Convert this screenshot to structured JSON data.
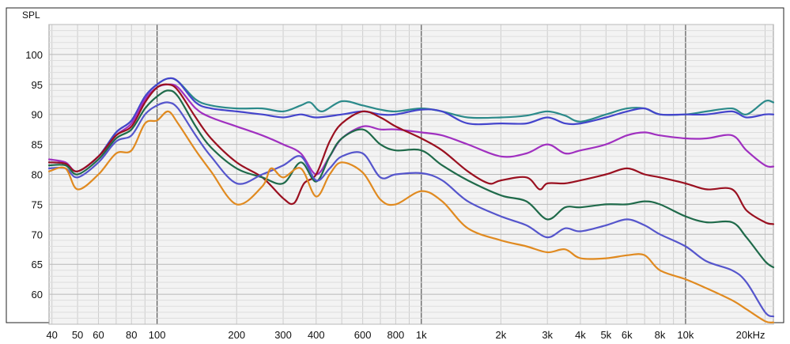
{
  "chart_data": {
    "type": "line",
    "ylabel": "SPL",
    "x_scale": "log",
    "xlim": [
      39,
      21500
    ],
    "ylim": [
      55,
      105
    ],
    "grid": true,
    "legend": "none",
    "x_ticks": [
      {
        "value": 40,
        "label": "40"
      },
      {
        "value": 50,
        "label": "50"
      },
      {
        "value": 60,
        "label": "60"
      },
      {
        "value": 80,
        "label": "80"
      },
      {
        "value": 100,
        "label": "100"
      },
      {
        "value": 200,
        "label": "200"
      },
      {
        "value": 300,
        "label": "300"
      },
      {
        "value": 400,
        "label": "400"
      },
      {
        "value": 600,
        "label": "600"
      },
      {
        "value": 800,
        "label": "800"
      },
      {
        "value": 1000,
        "label": "1k"
      },
      {
        "value": 2000,
        "label": "2k"
      },
      {
        "value": 3000,
        "label": "3k"
      },
      {
        "value": 4000,
        "label": "4k"
      },
      {
        "value": 5000,
        "label": "5k"
      },
      {
        "value": 6000,
        "label": "6k"
      },
      {
        "value": 8000,
        "label": "8k"
      },
      {
        "value": 10000,
        "label": "10k"
      },
      {
        "value": 20000,
        "label": "20kHz"
      }
    ],
    "y_ticks": [
      60,
      65,
      70,
      75,
      80,
      85,
      90,
      95,
      100
    ],
    "series": [
      {
        "color": "#2b8a8a",
        "points": [
          [
            39,
            82
          ],
          [
            45,
            81.8
          ],
          [
            50,
            80.5
          ],
          [
            60,
            83
          ],
          [
            70,
            87
          ],
          [
            80,
            89
          ],
          [
            90,
            93
          ],
          [
            100,
            95
          ],
          [
            110,
            96
          ],
          [
            120,
            95.5
          ],
          [
            140,
            92.5
          ],
          [
            160,
            91.5
          ],
          [
            200,
            91
          ],
          [
            250,
            91
          ],
          [
            300,
            90.5
          ],
          [
            350,
            91.5
          ],
          [
            380,
            92
          ],
          [
            420,
            90.5
          ],
          [
            500,
            92.2
          ],
          [
            600,
            91.5
          ],
          [
            700,
            90.8
          ],
          [
            800,
            90.5
          ],
          [
            1000,
            91
          ],
          [
            1200,
            90.5
          ],
          [
            1500,
            89.5
          ],
          [
            2000,
            89.5
          ],
          [
            2500,
            89.8
          ],
          [
            3000,
            90.5
          ],
          [
            3500,
            89.8
          ],
          [
            4000,
            88.8
          ],
          [
            5000,
            90
          ],
          [
            6000,
            91
          ],
          [
            7000,
            91
          ],
          [
            8000,
            90
          ],
          [
            10000,
            90
          ],
          [
            12000,
            90.5
          ],
          [
            15000,
            91
          ],
          [
            17000,
            90
          ],
          [
            20000,
            92.2
          ],
          [
            21500,
            92
          ]
        ]
      },
      {
        "color": "#4444cc",
        "points": [
          [
            39,
            82
          ],
          [
            45,
            81.8
          ],
          [
            50,
            80.5
          ],
          [
            60,
            83
          ],
          [
            70,
            87
          ],
          [
            80,
            89
          ],
          [
            90,
            93
          ],
          [
            100,
            95
          ],
          [
            110,
            96
          ],
          [
            120,
            95.5
          ],
          [
            140,
            92
          ],
          [
            160,
            91
          ],
          [
            200,
            90.5
          ],
          [
            250,
            90
          ],
          [
            300,
            89.5
          ],
          [
            350,
            90
          ],
          [
            400,
            89.5
          ],
          [
            500,
            90
          ],
          [
            600,
            90.5
          ],
          [
            700,
            90
          ],
          [
            800,
            90
          ],
          [
            1000,
            90.8
          ],
          [
            1200,
            90.5
          ],
          [
            1500,
            88.5
          ],
          [
            2000,
            88.5
          ],
          [
            2500,
            88.5
          ],
          [
            3000,
            89.5
          ],
          [
            3500,
            88.5
          ],
          [
            4000,
            88.5
          ],
          [
            5000,
            89.5
          ],
          [
            6000,
            90.5
          ],
          [
            7000,
            91
          ],
          [
            8000,
            90
          ],
          [
            10000,
            90
          ],
          [
            12000,
            90
          ],
          [
            15000,
            90.5
          ],
          [
            17000,
            89.5
          ],
          [
            20000,
            90
          ],
          [
            21500,
            90
          ]
        ]
      },
      {
        "color": "#a030c0",
        "points": [
          [
            39,
            82.5
          ],
          [
            45,
            82
          ],
          [
            50,
            80.5
          ],
          [
            60,
            83
          ],
          [
            70,
            86.5
          ],
          [
            80,
            88.5
          ],
          [
            90,
            92.5
          ],
          [
            100,
            94.5
          ],
          [
            110,
            95
          ],
          [
            120,
            94.5
          ],
          [
            140,
            91
          ],
          [
            160,
            89.5
          ],
          [
            200,
            88
          ],
          [
            250,
            86.5
          ],
          [
            300,
            85
          ],
          [
            350,
            83.5
          ],
          [
            400,
            80
          ],
          [
            450,
            83
          ],
          [
            500,
            86
          ],
          [
            600,
            88
          ],
          [
            700,
            87.5
          ],
          [
            800,
            87.5
          ],
          [
            1000,
            87
          ],
          [
            1200,
            86.5
          ],
          [
            1500,
            85
          ],
          [
            2000,
            83
          ],
          [
            2500,
            83.5
          ],
          [
            3000,
            85
          ],
          [
            3500,
            83.5
          ],
          [
            4000,
            84
          ],
          [
            5000,
            85
          ],
          [
            6000,
            86.5
          ],
          [
            7000,
            87
          ],
          [
            8000,
            86.5
          ],
          [
            10000,
            86
          ],
          [
            12000,
            86
          ],
          [
            15000,
            86.5
          ],
          [
            17000,
            84
          ],
          [
            20000,
            81.5
          ],
          [
            21500,
            81.3
          ]
        ]
      },
      {
        "color": "#9a1020",
        "points": [
          [
            39,
            82
          ],
          [
            45,
            81.8
          ],
          [
            50,
            80.5
          ],
          [
            60,
            83
          ],
          [
            70,
            86.5
          ],
          [
            80,
            88
          ],
          [
            90,
            92
          ],
          [
            100,
            94.5
          ],
          [
            110,
            95
          ],
          [
            120,
            94
          ],
          [
            140,
            89.5
          ],
          [
            160,
            86
          ],
          [
            200,
            82
          ],
          [
            250,
            79.5
          ],
          [
            300,
            76
          ],
          [
            330,
            75.2
          ],
          [
            360,
            78.5
          ],
          [
            400,
            80
          ],
          [
            450,
            85.5
          ],
          [
            500,
            88.5
          ],
          [
            600,
            90.5
          ],
          [
            700,
            89.5
          ],
          [
            800,
            88
          ],
          [
            1000,
            86
          ],
          [
            1200,
            84
          ],
          [
            1500,
            80.5
          ],
          [
            1800,
            78.5
          ],
          [
            2000,
            79
          ],
          [
            2500,
            79.5
          ],
          [
            2800,
            77.5
          ],
          [
            3000,
            78.5
          ],
          [
            3500,
            78.5
          ],
          [
            4000,
            79
          ],
          [
            5000,
            80
          ],
          [
            6000,
            81
          ],
          [
            7000,
            80
          ],
          [
            8000,
            79.5
          ],
          [
            10000,
            78.5
          ],
          [
            12000,
            77.5
          ],
          [
            15000,
            77.5
          ],
          [
            17000,
            74
          ],
          [
            20000,
            72
          ],
          [
            21500,
            71.7
          ]
        ]
      },
      {
        "color": "#1f6a4a",
        "points": [
          [
            39,
            81.5
          ],
          [
            45,
            81.5
          ],
          [
            50,
            80
          ],
          [
            60,
            82.5
          ],
          [
            70,
            86
          ],
          [
            80,
            87.5
          ],
          [
            90,
            91
          ],
          [
            100,
            93
          ],
          [
            110,
            94
          ],
          [
            120,
            93
          ],
          [
            140,
            88
          ],
          [
            160,
            84.5
          ],
          [
            200,
            81
          ],
          [
            250,
            79.5
          ],
          [
            300,
            78.5
          ],
          [
            350,
            82
          ],
          [
            400,
            78.8
          ],
          [
            450,
            83
          ],
          [
            500,
            86
          ],
          [
            600,
            87.5
          ],
          [
            700,
            85
          ],
          [
            800,
            84
          ],
          [
            1000,
            84
          ],
          [
            1200,
            81.5
          ],
          [
            1500,
            79
          ],
          [
            2000,
            76.5
          ],
          [
            2500,
            75.5
          ],
          [
            3000,
            72.5
          ],
          [
            3500,
            74.5
          ],
          [
            4000,
            74.5
          ],
          [
            5000,
            75
          ],
          [
            6000,
            75
          ],
          [
            7000,
            75.5
          ],
          [
            8000,
            75
          ],
          [
            10000,
            73
          ],
          [
            12000,
            72
          ],
          [
            15000,
            72
          ],
          [
            17000,
            69.5
          ],
          [
            20000,
            65.5
          ],
          [
            21500,
            64.5
          ]
        ]
      },
      {
        "color": "#5555cc",
        "points": [
          [
            39,
            81
          ],
          [
            45,
            81
          ],
          [
            50,
            79.5
          ],
          [
            60,
            82
          ],
          [
            70,
            85.5
          ],
          [
            80,
            86.5
          ],
          [
            90,
            90
          ],
          [
            100,
            91.5
          ],
          [
            110,
            92
          ],
          [
            120,
            91
          ],
          [
            140,
            86.5
          ],
          [
            160,
            83
          ],
          [
            200,
            78.5
          ],
          [
            250,
            80
          ],
          [
            300,
            81.5
          ],
          [
            350,
            83
          ],
          [
            400,
            79
          ],
          [
            450,
            81
          ],
          [
            500,
            83
          ],
          [
            600,
            83.5
          ],
          [
            700,
            79.5
          ],
          [
            800,
            80
          ],
          [
            1000,
            80.2
          ],
          [
            1200,
            79
          ],
          [
            1500,
            75.5
          ],
          [
            2000,
            73
          ],
          [
            2500,
            71.5
          ],
          [
            3000,
            69.5
          ],
          [
            3500,
            71
          ],
          [
            4000,
            70.5
          ],
          [
            5000,
            71.5
          ],
          [
            6000,
            72.5
          ],
          [
            7000,
            71.5
          ],
          [
            8000,
            70
          ],
          [
            10000,
            68
          ],
          [
            12000,
            65.5
          ],
          [
            15000,
            64
          ],
          [
            17000,
            62
          ],
          [
            20000,
            57
          ],
          [
            21500,
            56.3
          ]
        ]
      },
      {
        "color": "#e08a20",
        "points": [
          [
            39,
            80.5
          ],
          [
            45,
            81
          ],
          [
            50,
            77.5
          ],
          [
            60,
            80
          ],
          [
            70,
            83.5
          ],
          [
            80,
            84
          ],
          [
            90,
            88.5
          ],
          [
            100,
            89
          ],
          [
            110,
            90.5
          ],
          [
            120,
            88.5
          ],
          [
            140,
            84
          ],
          [
            160,
            80.5
          ],
          [
            200,
            75
          ],
          [
            250,
            78
          ],
          [
            270,
            81
          ],
          [
            300,
            79.5
          ],
          [
            350,
            81
          ],
          [
            400,
            76.3
          ],
          [
            450,
            80
          ],
          [
            500,
            82
          ],
          [
            600,
            80.3
          ],
          [
            700,
            75.8
          ],
          [
            800,
            75
          ],
          [
            1000,
            77.2
          ],
          [
            1200,
            75.5
          ],
          [
            1500,
            71
          ],
          [
            2000,
            69
          ],
          [
            2500,
            68
          ],
          [
            3000,
            67
          ],
          [
            3500,
            67.5
          ],
          [
            4000,
            66
          ],
          [
            5000,
            66
          ],
          [
            6000,
            66.5
          ],
          [
            7000,
            66.5
          ],
          [
            8000,
            64
          ],
          [
            10000,
            62.5
          ],
          [
            12000,
            61
          ],
          [
            15000,
            59
          ],
          [
            17000,
            57.5
          ],
          [
            20000,
            55.5
          ],
          [
            21500,
            55.3
          ]
        ]
      }
    ]
  }
}
